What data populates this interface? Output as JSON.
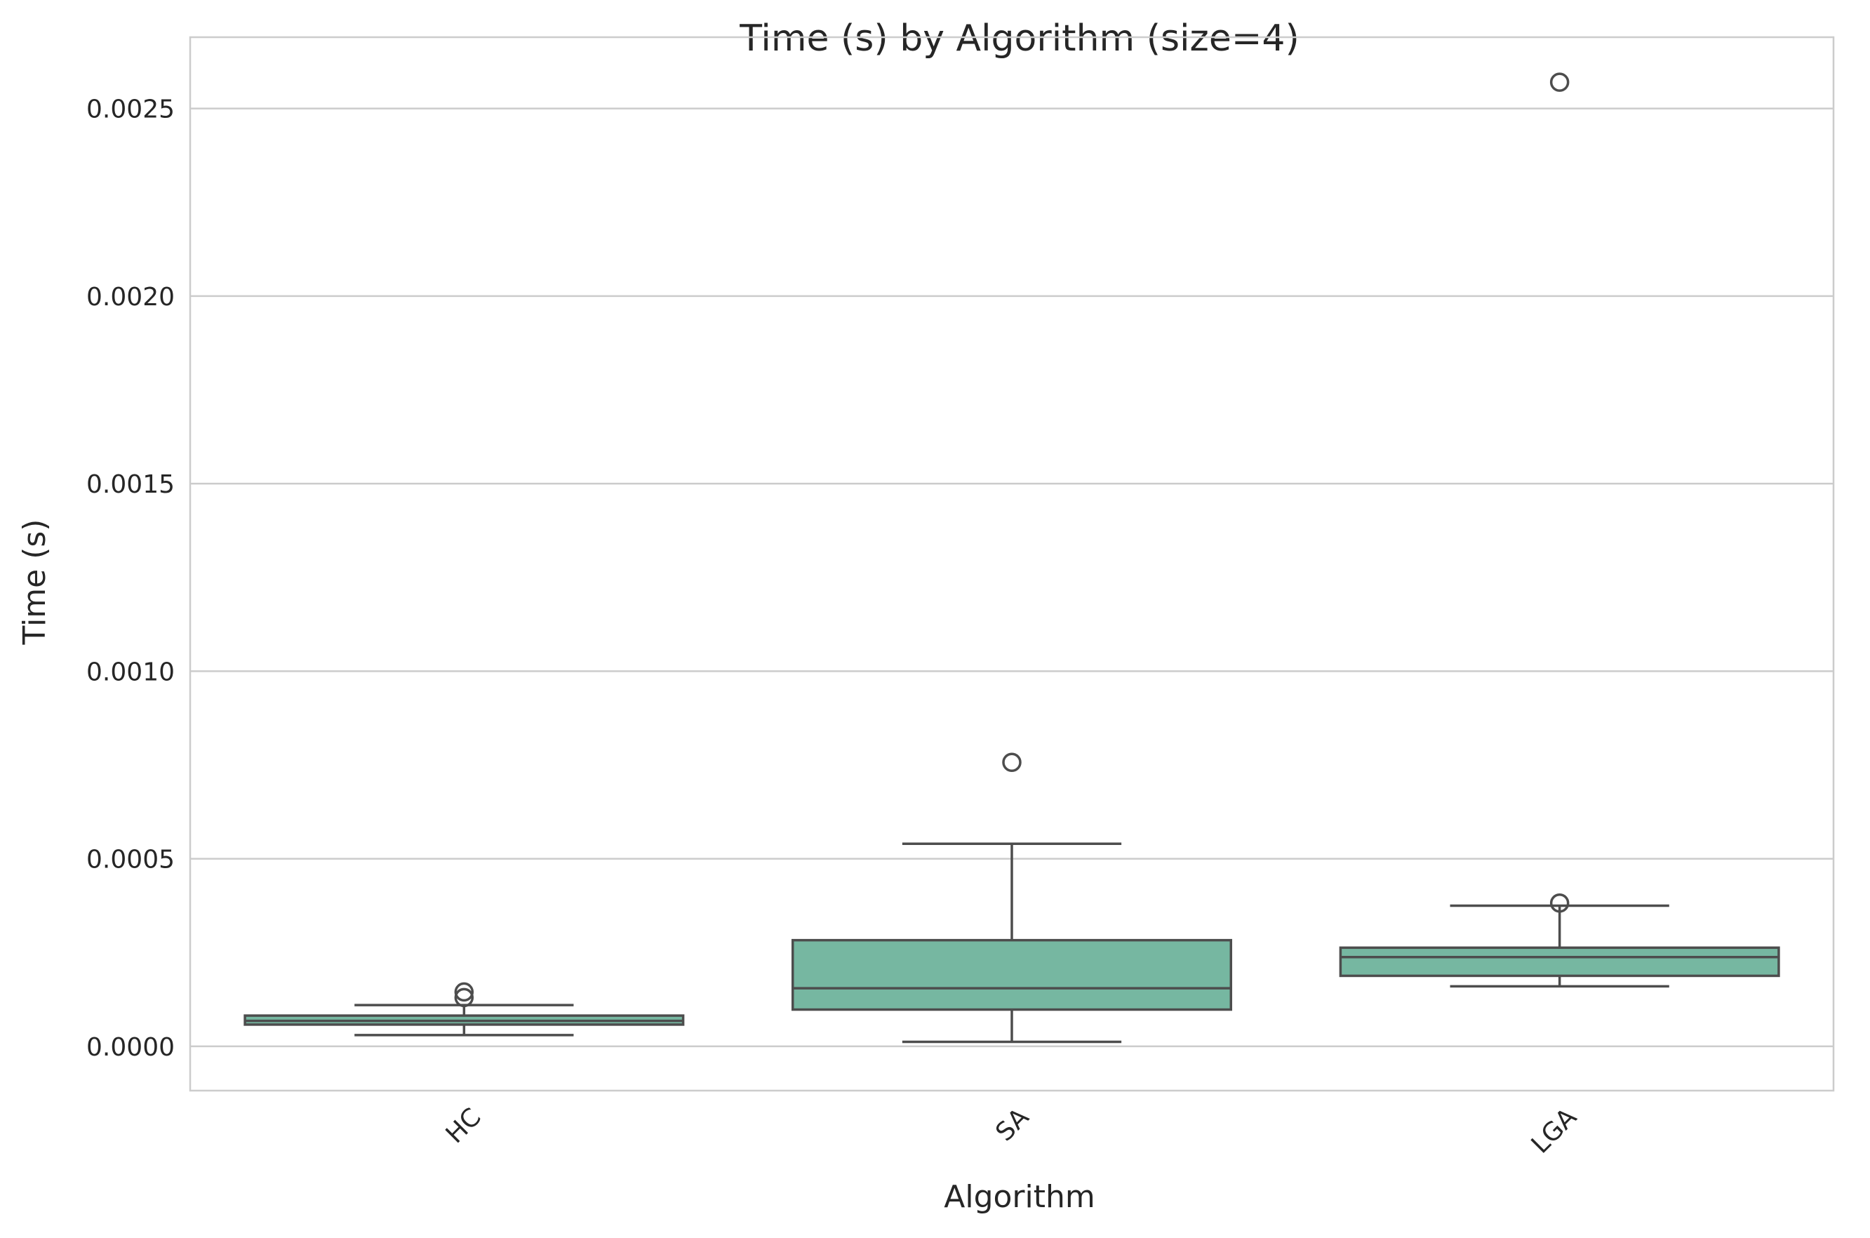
{
  "chart_data": {
    "type": "box",
    "title": "Time (s) by Algorithm (size=4)",
    "xlabel": "Algorithm",
    "ylabel": "Time (s)",
    "ylim": [
      -0.000118,
      0.00269
    ],
    "yticks": [
      0.0,
      0.0005,
      0.001,
      0.0015,
      0.002,
      0.0025
    ],
    "ytick_labels": [
      "0.0000",
      "0.0005",
      "0.0010",
      "0.0015",
      "0.0020",
      "0.0025"
    ],
    "grid": "horizontal",
    "colors": {
      "box_fill": "#76b7a1",
      "line": "#4d4d4d",
      "grid": "#cccccc",
      "frame": "#cccccc"
    },
    "categories": [
      "HC",
      "SA",
      "LGA"
    ],
    "boxes": [
      {
        "category": "HC",
        "whisker_low": 3e-05,
        "q1": 5.8e-05,
        "median": 6.8e-05,
        "q3": 8.2e-05,
        "whisker_high": 0.00011,
        "outliers": [
          0.00013,
          0.000145
        ]
      },
      {
        "category": "SA",
        "whisker_low": 1.2e-05,
        "q1": 9.8e-05,
        "median": 0.000155,
        "q3": 0.000283,
        "whisker_high": 0.00054,
        "outliers": [
          0.000757
        ]
      },
      {
        "category": "LGA",
        "whisker_low": 0.00016,
        "q1": 0.000188,
        "median": 0.000238,
        "q3": 0.000263,
        "whisker_high": 0.000375,
        "outliers": [
          0.000382,
          0.00257
        ]
      }
    ]
  }
}
